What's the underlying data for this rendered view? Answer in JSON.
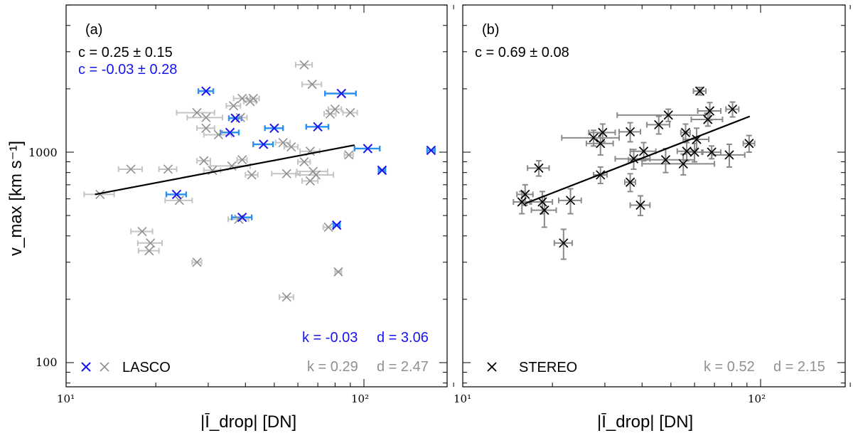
{
  "y_axis_label": "v_max [km s⁻¹]",
  "colors": {
    "black": "#000000",
    "blue": "#1515ee",
    "blue_err": "#2a8ff0",
    "gray": "#909090",
    "gray_err": "#c4c4c4",
    "stereo_err": "#8a8a8a"
  },
  "chart_data": [
    {
      "type": "scatter",
      "panel_label": "(a)",
      "xlabel": "|Ī_drop| [DN]",
      "ylabel": "v_max [km s⁻¹]",
      "xscale": "log",
      "yscale": "log",
      "xlim": [
        10,
        200
      ],
      "ylim": [
        80,
        5000
      ],
      "x_tick_labels": [
        "10¹",
        "10²"
      ],
      "y_tick_labels": [
        "100",
        "1000"
      ],
      "annotations": {
        "c_all": "c = 0.25 ± 0.15",
        "c_blue": "c = -0.03 ± 0.28",
        "k_blue": "k = -0.03",
        "d_blue": "d = 3.06",
        "k_all": "k = 0.29",
        "d_all": "d = 2.47"
      },
      "legend": {
        "label": "LASCO",
        "position": "bottom-left"
      },
      "fit": {
        "x": [
          12.5,
          93
        ],
        "y": [
          630,
          1080
        ]
      },
      "series": [
        {
          "name": "LASCO (blue)",
          "points": [
            [
              29.5,
              1950,
              1.7
            ],
            [
              84,
              1900,
              10
            ],
            [
              37,
              1450,
              1.8
            ],
            [
              70,
              1320,
              6
            ],
            [
              50,
              1300,
              3.5
            ],
            [
              35.5,
              1240,
              2.5
            ],
            [
              46,
              1090,
              3.5
            ],
            [
              103,
              1040,
              10
            ],
            [
              168,
              1020,
              5
            ],
            [
              115,
              820,
              3
            ],
            [
              23.5,
              630,
              1.8
            ],
            [
              39,
              490,
              3
            ],
            [
              81,
              450,
              2
            ]
          ]
        },
        {
          "name": "LASCO (gray)",
          "points": [
            [
              63,
              2600,
              4
            ],
            [
              67,
              2100,
              5
            ],
            [
              39,
              1800,
              2.5
            ],
            [
              42.5,
              1800,
              2
            ],
            [
              41.5,
              1740,
              2
            ],
            [
              36.5,
              1660,
              2
            ],
            [
              80,
              1600,
              4
            ],
            [
              90,
              1540,
              5
            ],
            [
              27.5,
              1540,
              4
            ],
            [
              77,
              1520,
              3.5
            ],
            [
              29.5,
              1460,
              4
            ],
            [
              38.5,
              1460,
              2
            ],
            [
              29.5,
              1300,
              2
            ],
            [
              32.5,
              1210,
              3.5
            ],
            [
              53.5,
              1110,
              3
            ],
            [
              57,
              1060,
              3
            ],
            [
              66,
              1010,
              5
            ],
            [
              89,
              970,
              3
            ],
            [
              29,
              910,
              1.5
            ],
            [
              63,
              900,
              3
            ],
            [
              36,
              860,
              5.5
            ],
            [
              39,
              920,
              1.5
            ],
            [
              16.5,
              830,
              1.5
            ],
            [
              22,
              830,
              1.5
            ],
            [
              31,
              820,
              2
            ],
            [
              67.5,
              810,
              8
            ],
            [
              69,
              780,
              10
            ],
            [
              55,
              790,
              6
            ],
            [
              42,
              780,
              2
            ],
            [
              66,
              730,
              4
            ],
            [
              13,
              630,
              1.5
            ],
            [
              24,
              590,
              2.5
            ],
            [
              38,
              480,
              3
            ],
            [
              76,
              440,
              3
            ],
            [
              18,
              420,
              1.5
            ],
            [
              19.2,
              370,
              1.8
            ],
            [
              19,
              340,
              1.5
            ],
            [
              27.5,
              300,
              1
            ],
            [
              82,
              270,
              2
            ],
            [
              55,
              205,
              3
            ]
          ]
        }
      ]
    },
    {
      "type": "scatter",
      "panel_label": "(b)",
      "xlabel": "|Ī_drop| [DN]",
      "ylabel": "v_max [km s⁻¹]",
      "xscale": "log",
      "yscale": "log",
      "xlim": [
        10,
        200
      ],
      "ylim": [
        80,
        5000
      ],
      "x_tick_labels": [
        "10¹",
        "10²"
      ],
      "y_tick_labels": [
        "100",
        "1000"
      ],
      "annotations": {
        "c_all": "c = 0.69 ± 0.08",
        "k_all": "k = 0.52",
        "d_all": "d = 2.15"
      },
      "legend": {
        "label": "STEREO",
        "position": "bottom-left"
      },
      "fit": {
        "x": [
          16.2,
          92
        ],
        "y": [
          570,
          1480
        ]
      },
      "series": [
        {
          "name": "STEREO",
          "points": [
            [
              62.5,
              1950,
              3,
              80
            ],
            [
              80.5,
              1600,
              4,
              130
            ],
            [
              67.5,
              1570,
              6,
              150
            ],
            [
              49,
              1500,
              16,
              100
            ],
            [
              66.5,
              1430,
              8,
              100
            ],
            [
              45.5,
              1350,
              4,
              130
            ],
            [
              36.5,
              1250,
              3,
              130
            ],
            [
              29.5,
              1240,
              3,
              120
            ],
            [
              56,
              1240,
              2,
              120
            ],
            [
              27.5,
              1170,
              6,
              100
            ],
            [
              61,
              1150,
              6,
              150
            ],
            [
              29,
              1100,
              3,
              130
            ],
            [
              91.5,
              1100,
              4,
              100
            ],
            [
              40.5,
              1010,
              4,
              100
            ],
            [
              56.5,
              1010,
              4,
              100
            ],
            [
              60,
              1000,
              4,
              100
            ],
            [
              68.5,
              1000,
              5,
              70
            ],
            [
              78.5,
              970,
              10,
              120
            ],
            [
              37.5,
              930,
              5,
              100
            ],
            [
              48,
              920,
              12,
              120
            ],
            [
              55,
              880,
              15,
              100
            ],
            [
              18,
              840,
              1.5,
              70
            ],
            [
              29,
              780,
              1.5,
              70
            ],
            [
              36.5,
              720,
              1.5,
              70
            ],
            [
              16.2,
              630,
              1,
              70
            ],
            [
              23,
              590,
              2,
              80
            ],
            [
              15.8,
              580,
              1,
              70
            ],
            [
              18.5,
              580,
              1.5,
              70
            ],
            [
              18.8,
              530,
              1.8,
              90
            ],
            [
              39.5,
              560,
              3,
              60
            ],
            [
              21.8,
              370,
              1.5,
              60
            ]
          ]
        }
      ]
    }
  ]
}
